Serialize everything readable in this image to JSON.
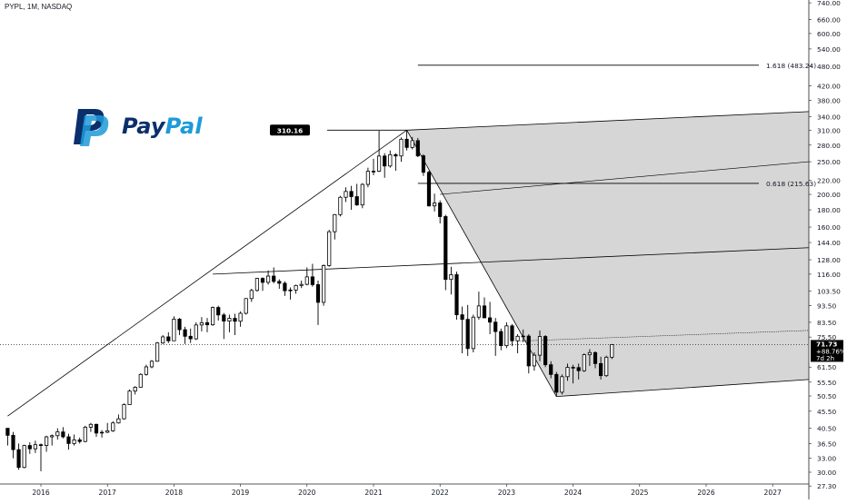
{
  "header": {
    "symbol_line": "PYPL, 1M, NASDAQ"
  },
  "logo": {
    "word_part1": "Pay",
    "word_part2": "Pal",
    "brand_dark": "#0b2f6b",
    "brand_light": "#1d9ad9"
  },
  "chart_data": {
    "type": "candlestick",
    "title": "PYPL, 1M, NASDAQ",
    "xlabel": "",
    "ylabel": "",
    "y_scale": "log",
    "ylim": [
      26.5,
      745
    ],
    "xlim": [
      "2015-07",
      "2028-01"
    ],
    "grid": false,
    "x_ticks": [
      "2016",
      "2017",
      "2018",
      "2019",
      "2020",
      "2021",
      "2022",
      "2023",
      "2024",
      "2025",
      "2026",
      "2027"
    ],
    "y_ticks": [
      "740.00",
      "660.00",
      "600.00",
      "540.00",
      "480.00",
      "420.00",
      "380.00",
      "340.00",
      "310.00",
      "280.00",
      "250.00",
      "220.00",
      "200.00",
      "180.00",
      "160.00",
      "144.00",
      "128.00",
      "116.00",
      "103.50",
      "93.50",
      "83.50",
      "75.50",
      "61.50",
      "55.50",
      "50.50",
      "45.50",
      "40.50",
      "36.50",
      "33.00",
      "30.00",
      "27.30"
    ],
    "ohlc": [
      [
        "2015-07",
        40.5,
        40.5,
        36.0,
        38.6
      ],
      [
        "2015-08",
        38.6,
        39.5,
        33.0,
        35.0
      ],
      [
        "2015-09",
        35.0,
        36.5,
        30.5,
        31.0
      ],
      [
        "2015-10",
        31.0,
        36.2,
        30.8,
        36.0
      ],
      [
        "2015-11",
        36.0,
        36.8,
        34.0,
        35.2
      ],
      [
        "2015-12",
        35.2,
        37.2,
        34.2,
        36.2
      ],
      [
        "2016-01",
        36.2,
        36.5,
        30.2,
        36.0
      ],
      [
        "2016-02",
        36.0,
        38.5,
        34.5,
        38.2
      ],
      [
        "2016-03",
        38.2,
        38.8,
        36.0,
        38.5
      ],
      [
        "2016-04",
        38.5,
        40.5,
        37.5,
        39.5
      ],
      [
        "2016-05",
        39.5,
        40.8,
        37.8,
        38.2
      ],
      [
        "2016-06",
        38.2,
        39.0,
        35.0,
        36.5
      ],
      [
        "2016-07",
        36.5,
        38.8,
        36.0,
        37.4
      ],
      [
        "2016-08",
        37.4,
        38.0,
        36.5,
        37.0
      ],
      [
        "2016-09",
        37.0,
        41.2,
        36.8,
        40.8
      ],
      [
        "2016-10",
        40.8,
        42.0,
        39.5,
        41.6
      ],
      [
        "2016-11",
        41.6,
        41.8,
        38.2,
        39.2
      ],
      [
        "2016-12",
        39.2,
        40.0,
        38.0,
        39.4
      ],
      [
        "2017-01",
        39.4,
        42.0,
        39.2,
        39.8
      ],
      [
        "2017-02",
        39.8,
        42.5,
        39.5,
        42.0
      ],
      [
        "2017-03",
        42.0,
        44.5,
        41.8,
        43.2
      ],
      [
        "2017-04",
        43.2,
        48.0,
        43.0,
        47.6
      ],
      [
        "2017-05",
        47.6,
        52.8,
        47.5,
        52.2
      ],
      [
        "2017-06",
        52.2,
        54.0,
        51.0,
        53.6
      ],
      [
        "2017-07",
        53.6,
        59.0,
        53.5,
        58.5
      ],
      [
        "2017-08",
        58.5,
        62.5,
        58.0,
        61.6
      ],
      [
        "2017-09",
        61.6,
        64.5,
        61.0,
        64.0
      ],
      [
        "2017-10",
        64.0,
        73.0,
        63.8,
        72.5
      ],
      [
        "2017-11",
        72.5,
        76.5,
        72.0,
        75.6
      ],
      [
        "2017-12",
        75.6,
        78.0,
        72.5,
        73.6
      ],
      [
        "2018-01",
        73.6,
        87.0,
        73.5,
        85.3
      ],
      [
        "2018-02",
        85.3,
        86.0,
        76.5,
        79.4
      ],
      [
        "2018-03",
        79.4,
        81.0,
        72.0,
        75.9
      ],
      [
        "2018-04",
        75.9,
        80.0,
        72.5,
        74.6
      ],
      [
        "2018-05",
        74.6,
        83.5,
        74.0,
        82.0
      ],
      [
        "2018-06",
        82.0,
        86.5,
        78.5,
        83.3
      ],
      [
        "2018-07",
        83.3,
        86.0,
        78.0,
        82.1
      ],
      [
        "2018-08",
        82.1,
        93.0,
        81.5,
        92.4
      ],
      [
        "2018-09",
        92.4,
        93.5,
        84.5,
        87.8
      ],
      [
        "2018-10",
        87.8,
        89.0,
        74.5,
        84.2
      ],
      [
        "2018-11",
        84.2,
        88.0,
        78.0,
        85.8
      ],
      [
        "2018-12",
        85.8,
        88.5,
        76.5,
        84.1
      ],
      [
        "2019-01",
        84.1,
        90.0,
        81.0,
        88.8
      ],
      [
        "2019-02",
        88.8,
        98.5,
        88.0,
        98.2
      ],
      [
        "2019-03",
        98.2,
        105.0,
        96.0,
        103.8
      ],
      [
        "2019-04",
        103.8,
        113.0,
        103.0,
        112.7
      ],
      [
        "2019-05",
        112.7,
        113.5,
        103.5,
        109.7
      ],
      [
        "2019-06",
        109.7,
        119.0,
        108.0,
        114.5
      ],
      [
        "2019-07",
        114.5,
        121.5,
        109.0,
        110.4
      ],
      [
        "2019-08",
        110.4,
        112.0,
        105.0,
        109.0
      ],
      [
        "2019-09",
        109.0,
        110.5,
        100.0,
        103.6
      ],
      [
        "2019-10",
        103.6,
        106.0,
        97.5,
        104.1
      ],
      [
        "2019-11",
        104.1,
        108.0,
        101.5,
        107.4
      ],
      [
        "2019-12",
        107.4,
        111.0,
        105.5,
        108.2
      ],
      [
        "2020-01",
        108.2,
        121.5,
        107.5,
        113.9
      ],
      [
        "2020-02",
        113.9,
        124.5,
        106.5,
        108.0
      ],
      [
        "2020-03",
        108.0,
        111.0,
        82.0,
        95.7
      ],
      [
        "2020-04",
        95.7,
        124.0,
        93.5,
        123.0
      ],
      [
        "2020-05",
        123.0,
        157.0,
        122.0,
        155.0
      ],
      [
        "2020-06",
        155.0,
        175.0,
        147.0,
        174.2
      ],
      [
        "2020-07",
        174.2,
        198.0,
        172.0,
        196.1
      ],
      [
        "2020-08",
        196.1,
        210.0,
        190.0,
        204.1
      ],
      [
        "2020-09",
        204.1,
        212.0,
        180.0,
        197.0
      ],
      [
        "2020-10",
        197.0,
        215.0,
        185.0,
        186.1
      ],
      [
        "2020-11",
        186.1,
        216.0,
        182.0,
        214.1
      ],
      [
        "2020-12",
        214.1,
        240.0,
        210.0,
        234.2
      ],
      [
        "2021-01",
        234.2,
        255.0,
        228.0,
        234.3
      ],
      [
        "2021-02",
        234.3,
        309.0,
        233.0,
        259.9
      ],
      [
        "2021-03",
        259.9,
        265.0,
        224.0,
        242.8
      ],
      [
        "2021-04",
        242.8,
        270.0,
        240.0,
        262.3
      ],
      [
        "2021-05",
        262.3,
        265.0,
        235.0,
        260.0
      ],
      [
        "2021-06",
        260.0,
        295.0,
        250.0,
        291.5
      ],
      [
        "2021-07",
        291.5,
        310.16,
        270.0,
        275.6
      ],
      [
        "2021-08",
        275.6,
        296.0,
        272.0,
        288.7
      ],
      [
        "2021-09",
        288.7,
        294.0,
        258.0,
        260.2
      ],
      [
        "2021-10",
        260.2,
        263.0,
        227.0,
        232.6
      ],
      [
        "2021-11",
        232.6,
        235.0,
        184.0,
        184.9
      ],
      [
        "2021-12",
        184.9,
        201.0,
        178.0,
        188.6
      ],
      [
        "2022-01",
        188.6,
        192.0,
        164.0,
        171.9
      ],
      [
        "2022-02",
        171.9,
        174.0,
        104.0,
        111.9
      ],
      [
        "2022-03",
        111.9,
        122.0,
        101.0,
        115.6
      ],
      [
        "2022-04",
        115.6,
        118.0,
        85.0,
        87.9
      ],
      [
        "2022-05",
        87.9,
        93.0,
        67.6,
        85.2
      ],
      [
        "2022-06",
        85.2,
        94.0,
        66.4,
        69.8
      ],
      [
        "2022-07",
        69.8,
        88.0,
        68.0,
        86.5
      ],
      [
        "2022-08",
        86.5,
        103.0,
        85.0,
        93.4
      ],
      [
        "2022-09",
        93.4,
        99.0,
        86.0,
        86.1
      ],
      [
        "2022-10",
        86.1,
        96.0,
        77.0,
        83.6
      ],
      [
        "2022-11",
        83.6,
        86.0,
        66.4,
        78.4
      ],
      [
        "2022-12",
        78.4,
        80.0,
        69.0,
        71.2
      ],
      [
        "2023-01",
        71.2,
        83.5,
        70.0,
        81.5
      ],
      [
        "2023-02",
        81.5,
        82.5,
        71.0,
        73.6
      ],
      [
        "2023-03",
        73.6,
        77.0,
        67.6,
        75.9
      ],
      [
        "2023-04",
        75.9,
        79.5,
        73.0,
        76.0
      ],
      [
        "2023-05",
        76.0,
        77.0,
        58.9,
        62.0
      ],
      [
        "2023-06",
        62.0,
        68.0,
        60.0,
        66.7
      ],
      [
        "2023-07",
        66.7,
        79.0,
        64.0,
        75.8
      ],
      [
        "2023-08",
        75.8,
        76.5,
        61.5,
        62.5
      ],
      [
        "2023-09",
        62.5,
        64.0,
        57.0,
        58.5
      ],
      [
        "2023-10",
        58.5,
        59.5,
        50.3,
        51.8
      ],
      [
        "2023-11",
        51.8,
        58.5,
        51.0,
        57.6
      ],
      [
        "2023-12",
        57.6,
        63.0,
        56.0,
        61.4
      ],
      [
        "2024-01",
        61.4,
        62.5,
        55.0,
        61.3
      ],
      [
        "2024-02",
        61.3,
        63.0,
        56.5,
        60.0
      ],
      [
        "2024-03",
        60.0,
        67.5,
        59.5,
        66.9
      ],
      [
        "2024-04",
        66.9,
        69.5,
        62.0,
        67.9
      ],
      [
        "2024-05",
        67.9,
        68.5,
        61.0,
        63.0
      ],
      [
        "2024-06",
        63.0,
        66.0,
        56.5,
        58.0
      ],
      [
        "2024-07",
        58.0,
        66.5,
        57.5,
        65.8
      ],
      [
        "2024-08",
        65.8,
        72.0,
        65.0,
        71.73
      ]
    ],
    "annotations": {
      "peak_label": "310.16",
      "fib_levels": [
        {
          "label": "1.618 (483.24)",
          "value": 483.24
        },
        {
          "label": "0.618 (215.63)",
          "value": 215.63
        }
      ],
      "last_price": {
        "price": "71.73",
        "change": "+88.76%",
        "countdown": "7d 2h",
        "value": 71.73
      }
    },
    "colors": {
      "candle_up": "#ffffff",
      "candle_down": "#000000",
      "channel_fill": "#d6d6d6",
      "line": "#000000",
      "background": "#ffffff"
    }
  }
}
